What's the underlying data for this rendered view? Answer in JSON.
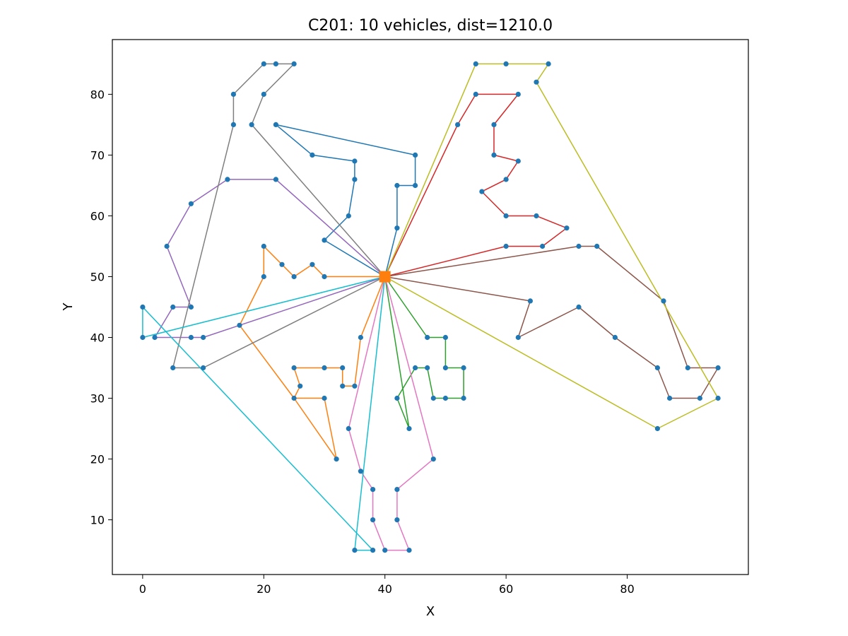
{
  "chart_data": {
    "type": "line",
    "title": "C201: 10 vehicles, dist=1210.0",
    "xlabel": "X",
    "ylabel": "Y",
    "xlim": [
      -5,
      100
    ],
    "ylim": [
      1,
      89
    ],
    "xticks": [
      0,
      20,
      40,
      60,
      80
    ],
    "yticks": [
      10,
      20,
      30,
      40,
      50,
      60,
      70,
      80
    ],
    "grid": false,
    "depot": [
      40,
      50
    ],
    "depot_color": "#ff7f0e",
    "customer_color": "#1f77b4",
    "routes": [
      {
        "color": "#1f77b4",
        "points": [
          [
            40,
            50
          ],
          [
            30,
            56
          ],
          [
            34,
            60
          ],
          [
            35,
            66
          ],
          [
            35,
            69
          ],
          [
            28,
            70
          ],
          [
            22,
            75
          ],
          [
            45,
            70
          ],
          [
            45,
            65
          ],
          [
            42,
            65
          ],
          [
            42,
            58
          ],
          [
            40,
            50
          ]
        ]
      },
      {
        "color": "#ff7f0e",
        "points": [
          [
            40,
            50
          ],
          [
            30,
            50
          ],
          [
            28,
            52
          ],
          [
            25,
            50
          ],
          [
            23,
            52
          ],
          [
            20,
            55
          ],
          [
            20,
            50
          ],
          [
            16,
            42
          ],
          [
            25,
            30
          ],
          [
            32,
            20
          ],
          [
            30,
            30
          ],
          [
            25,
            30
          ],
          [
            26,
            32
          ],
          [
            25,
            35
          ],
          [
            30,
            35
          ],
          [
            33,
            35
          ],
          [
            33,
            32
          ],
          [
            35,
            32
          ],
          [
            36,
            40
          ],
          [
            40,
            50
          ]
        ]
      },
      {
        "color": "#2ca02c",
        "points": [
          [
            40,
            50
          ],
          [
            47,
            40
          ],
          [
            50,
            40
          ],
          [
            50,
            35
          ],
          [
            53,
            35
          ],
          [
            53,
            30
          ],
          [
            50,
            30
          ],
          [
            48,
            30
          ],
          [
            47,
            35
          ],
          [
            45,
            35
          ],
          [
            42,
            30
          ],
          [
            44,
            25
          ],
          [
            40,
            50
          ]
        ]
      },
      {
        "color": "#d62728",
        "points": [
          [
            40,
            50
          ],
          [
            60,
            55
          ],
          [
            66,
            55
          ],
          [
            70,
            58
          ],
          [
            65,
            60
          ],
          [
            60,
            60
          ],
          [
            56,
            64
          ],
          [
            60,
            66
          ],
          [
            62,
            69
          ],
          [
            58,
            70
          ],
          [
            58,
            75
          ],
          [
            62,
            80
          ],
          [
            55,
            80
          ],
          [
            52,
            75
          ],
          [
            40,
            50
          ]
        ]
      },
      {
        "color": "#9467bd",
        "points": [
          [
            40,
            50
          ],
          [
            22,
            66
          ],
          [
            14,
            66
          ],
          [
            8,
            62
          ],
          [
            4,
            55
          ],
          [
            8,
            45
          ],
          [
            5,
            45
          ],
          [
            2,
            40
          ],
          [
            8,
            40
          ],
          [
            10,
            40
          ],
          [
            16,
            42
          ],
          [
            40,
            50
          ]
        ]
      },
      {
        "color": "#8c564b",
        "points": [
          [
            40,
            50
          ],
          [
            72,
            55
          ],
          [
            75,
            55
          ],
          [
            86,
            46
          ],
          [
            90,
            35
          ],
          [
            95,
            35
          ],
          [
            92,
            30
          ],
          [
            87,
            30
          ],
          [
            85,
            35
          ],
          [
            78,
            40
          ],
          [
            72,
            45
          ],
          [
            62,
            40
          ],
          [
            64,
            46
          ],
          [
            40,
            50
          ]
        ]
      },
      {
        "color": "#e377c2",
        "points": [
          [
            40,
            50
          ],
          [
            48,
            20
          ],
          [
            42,
            15
          ],
          [
            42,
            10
          ],
          [
            44,
            5
          ],
          [
            40,
            5
          ],
          [
            38,
            10
          ],
          [
            38,
            15
          ],
          [
            36,
            18
          ],
          [
            34,
            25
          ],
          [
            40,
            50
          ]
        ]
      },
      {
        "color": "#7f7f7f",
        "points": [
          [
            40,
            50
          ],
          [
            10,
            35
          ],
          [
            5,
            35
          ],
          [
            15,
            75
          ],
          [
            15,
            80
          ],
          [
            20,
            85
          ],
          [
            22,
            85
          ],
          [
            25,
            85
          ],
          [
            20,
            80
          ],
          [
            18,
            75
          ],
          [
            40,
            50
          ]
        ]
      },
      {
        "color": "#bcbd22",
        "points": [
          [
            40,
            50
          ],
          [
            55,
            85
          ],
          [
            60,
            85
          ],
          [
            67,
            85
          ],
          [
            65,
            82
          ],
          [
            95,
            30
          ],
          [
            85,
            25
          ],
          [
            40,
            50
          ]
        ]
      },
      {
        "color": "#17becf",
        "points": [
          [
            40,
            50
          ],
          [
            0,
            40
          ],
          [
            0,
            45
          ],
          [
            38,
            5
          ],
          [
            35,
            5
          ],
          [
            40,
            50
          ]
        ]
      }
    ]
  }
}
